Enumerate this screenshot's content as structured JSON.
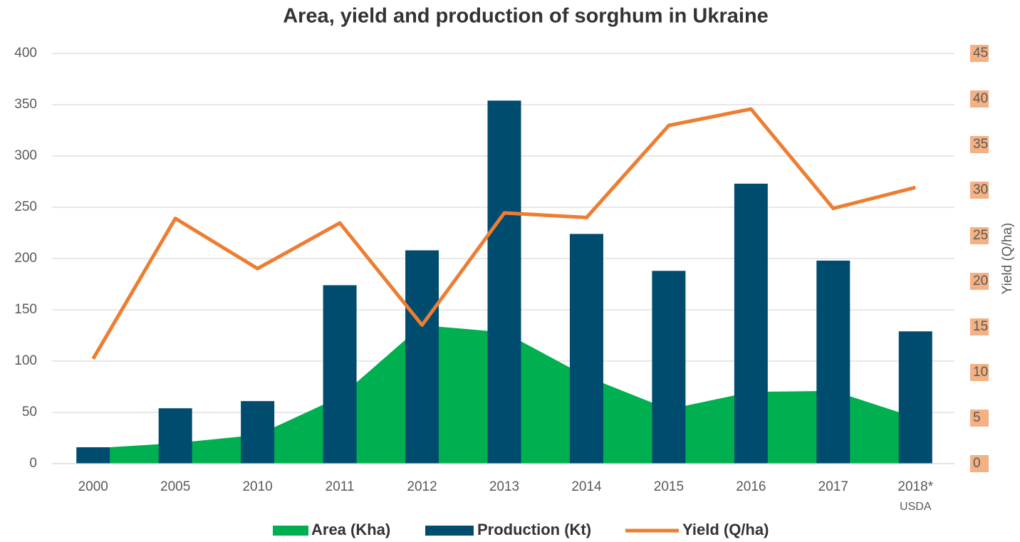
{
  "chart_data": {
    "type": "combo",
    "title": "Area, yield and production of sorghum in Ukraine",
    "y2_label": "Yield (Q/ha)",
    "categories": [
      "2000",
      "2005",
      "2010",
      "2011",
      "2012",
      "2013",
      "2014",
      "2015",
      "2016",
      "2017",
      "2018*"
    ],
    "category_note": {
      "index": 10,
      "text": "USDA"
    },
    "series": [
      {
        "name": "Area (Kha)",
        "type": "area",
        "color": "#00b050",
        "values": [
          15,
          20,
          28,
          65,
          135,
          128,
          85,
          53,
          70,
          71,
          45
        ]
      },
      {
        "name": "Production (Kt)",
        "type": "bar",
        "color": "#004c6f",
        "values": [
          16,
          54,
          61,
          174,
          208,
          354,
          224,
          188,
          273,
          198,
          129
        ]
      },
      {
        "name": "Yield (Q/ha)",
        "type": "line",
        "axis": "y2",
        "color": "#ed7d31",
        "values": [
          11.5,
          26.9,
          21.4,
          26.4,
          15.2,
          27.5,
          27,
          37.1,
          38.9,
          28,
          30.3
        ]
      }
    ],
    "ylim": [
      0,
      400
    ],
    "yticks": [
      0,
      50,
      100,
      150,
      200,
      250,
      300,
      350,
      400
    ],
    "y2lim": [
      0,
      45
    ],
    "y2ticks": [
      0,
      5,
      10,
      15,
      20,
      25,
      30,
      35,
      40,
      45
    ],
    "grid": true,
    "legend": "bottom"
  }
}
